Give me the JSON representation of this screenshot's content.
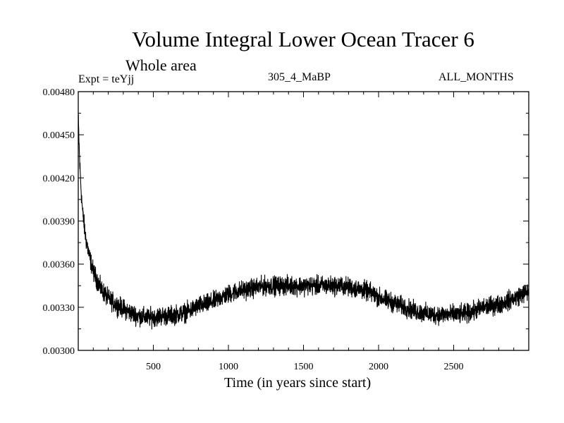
{
  "chart_data": {
    "type": "line",
    "title": "Volume Integral Lower Ocean Tracer 6",
    "subtitle": "Whole area",
    "experiment_label": "Expt = teYjj",
    "run_label": "305_4_MaBP",
    "period_label": "ALL_MONTHS",
    "xlabel": "Time (in years since start)",
    "ylabel": "",
    "xlim": [
      0,
      3000
    ],
    "ylim": [
      0.003,
      0.0048
    ],
    "xticks": [
      500,
      1000,
      1500,
      2000,
      2500
    ],
    "xtick_labels": [
      "500",
      "1000",
      "1500",
      "2000",
      "2500"
    ],
    "yticks": [
      0.003,
      0.0033,
      0.0036,
      0.0039,
      0.0042,
      0.0045,
      0.0048
    ],
    "ytick_labels": [
      "0.00300",
      "0.00330",
      "0.00360",
      "0.00390",
      "0.00420",
      "0.00450",
      "0.00480"
    ],
    "noise_amplitude": 7e-05,
    "series": [
      {
        "name": "Lower Ocean Tracer 6",
        "x": [
          0,
          5,
          10,
          20,
          30,
          50,
          75,
          100,
          150,
          200,
          250,
          300,
          350,
          400,
          450,
          500,
          550,
          600,
          650,
          700,
          750,
          800,
          850,
          900,
          950,
          1000,
          1050,
          1100,
          1150,
          1200,
          1250,
          1300,
          1350,
          1400,
          1450,
          1500,
          1550,
          1600,
          1650,
          1700,
          1750,
          1800,
          1850,
          1900,
          1950,
          2000,
          2050,
          2100,
          2150,
          2200,
          2250,
          2300,
          2350,
          2400,
          2450,
          2500,
          2550,
          2600,
          2650,
          2700,
          2750,
          2800,
          2850,
          2900,
          2950,
          3000
        ],
        "values": [
          0.00462,
          0.00445,
          0.0043,
          0.0041,
          0.00395,
          0.00378,
          0.00365,
          0.00355,
          0.00343,
          0.00336,
          0.00332,
          0.00329,
          0.00326,
          0.00324,
          0.00323,
          0.00323,
          0.00324,
          0.00324,
          0.00325,
          0.00326,
          0.00328,
          0.00331,
          0.00332,
          0.00334,
          0.00337,
          0.00339,
          0.00341,
          0.00342,
          0.00343,
          0.00344,
          0.00345,
          0.00345,
          0.00345,
          0.00345,
          0.00345,
          0.00345,
          0.00345,
          0.00345,
          0.00345,
          0.00345,
          0.00345,
          0.00344,
          0.00343,
          0.00342,
          0.0034,
          0.00337,
          0.00335,
          0.00333,
          0.00331,
          0.00329,
          0.00327,
          0.00326,
          0.00325,
          0.00325,
          0.00325,
          0.00325,
          0.00325,
          0.00326,
          0.00328,
          0.0033,
          0.00331,
          0.00332,
          0.00334,
          0.00336,
          0.00339,
          0.00341
        ]
      }
    ]
  }
}
